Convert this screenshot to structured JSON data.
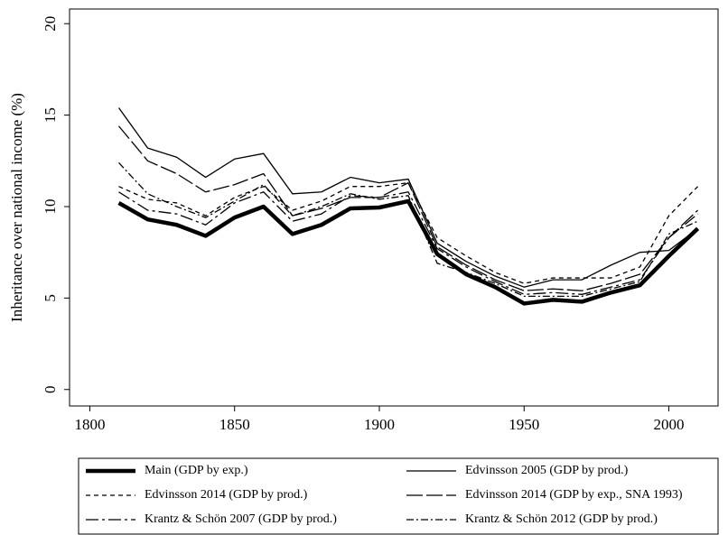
{
  "chart_data": {
    "type": "line",
    "y_label": "Inheritance over national income (%)",
    "x": [
      1810,
      1820,
      1830,
      1840,
      1850,
      1860,
      1870,
      1880,
      1890,
      1900,
      1910,
      1920,
      1930,
      1940,
      1950,
      1960,
      1970,
      1980,
      1990,
      2000,
      2010
    ],
    "series": [
      {
        "name": "Main (GDP by exp.)",
        "color": "#000000",
        "values": [
          10.2,
          9.3,
          9.0,
          8.4,
          9.4,
          10.0,
          8.5,
          9.0,
          9.9,
          9.95,
          10.3,
          7.4,
          6.3,
          5.6,
          4.7,
          4.9,
          4.8,
          5.3,
          5.7,
          7.3,
          8.8
        ]
      },
      {
        "name": "Edvinsson 2005 (GDP by prod.)",
        "color": "#000000",
        "values": [
          15.4,
          13.2,
          12.7,
          11.6,
          12.6,
          12.9,
          10.7,
          10.8,
          11.6,
          11.3,
          11.5,
          8.0,
          7.0,
          6.2,
          5.6,
          6.0,
          6.0,
          6.8,
          7.5,
          7.6,
          8.8
        ]
      },
      {
        "name": "Edvinsson 2014 (GDP by prod.)",
        "color": "#000000",
        "values": [
          11.1,
          10.4,
          10.2,
          9.5,
          10.5,
          11.1,
          9.8,
          10.3,
          11.1,
          11.1,
          11.3,
          8.3,
          7.3,
          6.4,
          5.8,
          6.1,
          6.1,
          6.1,
          6.7,
          9.5,
          11.1
        ]
      },
      {
        "name": "Edvinsson 2014 (GDP by exp., SNA 1993)",
        "color": "#000000",
        "values": [
          14.4,
          12.5,
          11.8,
          10.8,
          11.2,
          11.8,
          9.5,
          9.9,
          10.5,
          10.5,
          11.3,
          7.8,
          6.8,
          6.0,
          5.4,
          5.5,
          5.4,
          5.8,
          6.3,
          8.3,
          9.8
        ]
      },
      {
        "name": "Krantz & Schön 2007 (GDP by prod.)",
        "color": "#000000",
        "values": [
          10.8,
          9.8,
          9.6,
          9.0,
          10.2,
          10.8,
          9.2,
          9.6,
          10.6,
          10.5,
          10.8,
          7.7,
          6.7,
          5.9,
          5.2,
          5.3,
          5.2,
          5.6,
          6.0,
          8.3,
          9.6
        ]
      },
      {
        "name": "Krantz & Schön 2012 (GDP by prod.)",
        "color": "#000000",
        "values": [
          12.4,
          10.7,
          10.0,
          9.4,
          10.3,
          11.2,
          9.5,
          10.0,
          10.7,
          10.4,
          10.6,
          6.9,
          6.4,
          5.8,
          5.1,
          5.1,
          5.1,
          5.5,
          5.9,
          8.5,
          9.2
        ]
      }
    ],
    "xlim": [
      1793,
      2017
    ],
    "xticks": [
      1800,
      1850,
      1900,
      1950,
      2000
    ],
    "ylim": [
      -0.9,
      20.8
    ],
    "yticks": [
      0,
      5,
      10,
      15,
      20
    ]
  }
}
